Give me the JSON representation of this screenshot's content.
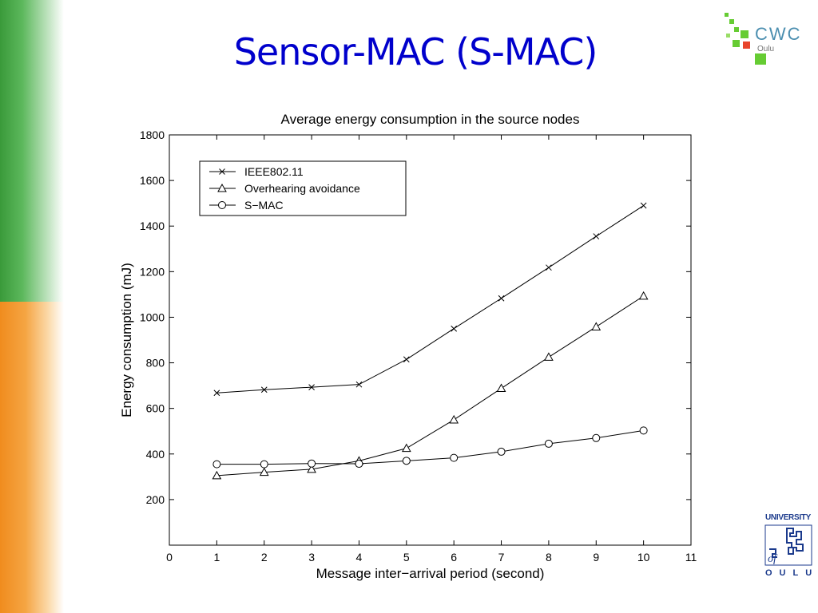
{
  "slide": {
    "title": "Sensor-MAC (S-MAC)",
    "logo_top": {
      "name": "CWC",
      "sub": "Oulu"
    },
    "logo_bottom": {
      "top": "UNIVERSITY",
      "middle": "of",
      "bottom": "OULU"
    }
  },
  "colors": {
    "title": "#0000cc",
    "left_bar_top": "#3a9a3a",
    "left_bar_bottom": "#f08c1e",
    "cwc_text": "#4c8fb0",
    "cwc_green": "#66cc33",
    "cwc_red": "#e8452c",
    "uni_blue": "#1b3a8c"
  },
  "chart_data": {
    "type": "line",
    "title": "Average energy consumption in the source nodes",
    "xlabel": "Message inter−arrival period (second)",
    "ylabel": "Energy consumption (mJ)",
    "xlim": [
      0,
      11
    ],
    "ylim": [
      0,
      1800
    ],
    "xticks": [
      "0",
      "1",
      "2",
      "3",
      "4",
      "5",
      "6",
      "7",
      "8",
      "9",
      "10",
      "11"
    ],
    "yticks": [
      "200",
      "400",
      "600",
      "800",
      "1000",
      "1200",
      "1400",
      "1600",
      "1800"
    ],
    "legend_position": "top-left",
    "grid": false,
    "x": [
      1,
      2,
      3,
      4,
      5,
      6,
      7,
      8,
      9,
      10
    ],
    "series": [
      {
        "name": "IEEE802.11",
        "marker": "x",
        "values": [
          668,
          682,
          693,
          705,
          815,
          950,
          1083,
          1218,
          1355,
          1490
        ]
      },
      {
        "name": "Overhearing avoidance",
        "marker": "triangle",
        "values": [
          305,
          320,
          333,
          370,
          425,
          550,
          688,
          825,
          958,
          1093
        ]
      },
      {
        "name": "S−MAC",
        "marker": "circle",
        "values": [
          355,
          355,
          358,
          357,
          370,
          383,
          410,
          445,
          470,
          503
        ]
      }
    ]
  }
}
